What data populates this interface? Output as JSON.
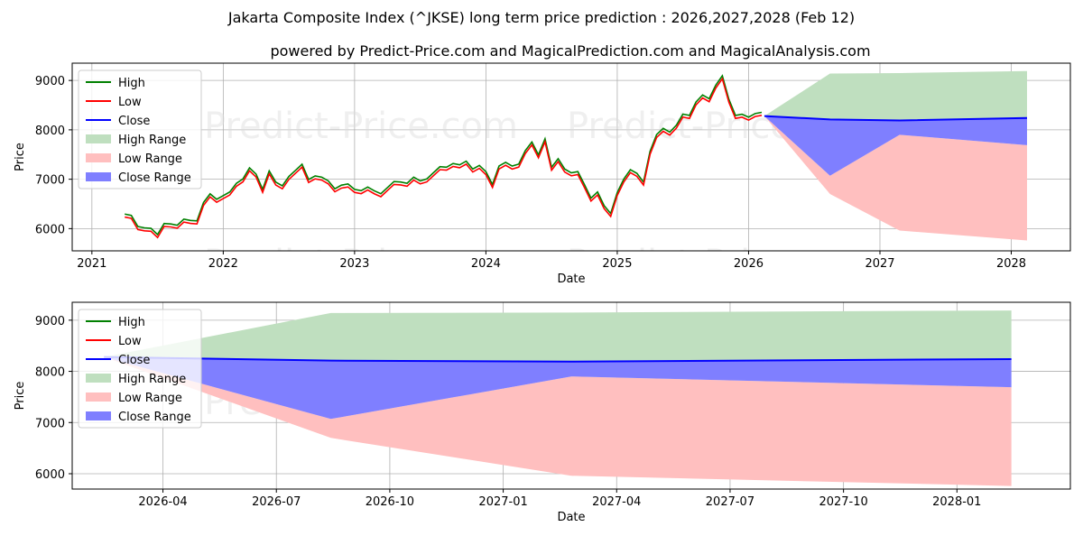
{
  "title_line1": "Jakarta Composite Index (^JKSE) long term price prediction : 2026,2027,2028 (Feb 12)",
  "title_line2": "powered by Predict-Price.com and MagicalPrediction.com and MagicalAnalysis.com",
  "watermark": "Predict-Price.com",
  "colors": {
    "high": "#008000",
    "low": "#ff0000",
    "close": "#0000ff",
    "high_range": "#bfdfbf",
    "low_range": "#ffbfbf",
    "close_range": "#7f7fff"
  },
  "legend": [
    "High",
    "Low",
    "Close",
    "High Range",
    "Low Range",
    "Close Range"
  ],
  "chart_data": [
    {
      "type": "line",
      "title": "Jakarta Composite Index (^JKSE) long term price prediction : 2026,2027,2028 (Feb 12)",
      "xlabel": "Date",
      "ylabel": "Price",
      "xlim": [
        2020.85,
        2028.45
      ],
      "ylim": [
        5550,
        9350
      ],
      "x_ticks": [
        2021,
        2022,
        2023,
        2024,
        2025,
        2026,
        2027,
        2028
      ],
      "x_tick_labels": [
        "2021",
        "2022",
        "2023",
        "2024",
        "2025",
        "2026",
        "2027",
        "2028"
      ],
      "y_ticks": [
        6000,
        7000,
        8000,
        9000
      ],
      "y_tick_labels": [
        "6000",
        "7000",
        "8000",
        "9000"
      ],
      "grid": true,
      "legend_position": "top-left",
      "history": {
        "x": [
          2021.25,
          2021.3,
          2021.35,
          2021.4,
          2021.45,
          2021.5,
          2021.55,
          2021.6,
          2021.65,
          2021.7,
          2021.75,
          2021.8,
          2021.85,
          2021.9,
          2021.95,
          2022.0,
          2022.05,
          2022.1,
          2022.15,
          2022.2,
          2022.25,
          2022.3,
          2022.35,
          2022.4,
          2022.45,
          2022.5,
          2022.55,
          2022.6,
          2022.65,
          2022.7,
          2022.75,
          2022.8,
          2022.85,
          2022.9,
          2022.95,
          2023.0,
          2023.05,
          2023.1,
          2023.15,
          2023.2,
          2023.25,
          2023.3,
          2023.35,
          2023.4,
          2023.45,
          2023.5,
          2023.55,
          2023.6,
          2023.65,
          2023.7,
          2023.75,
          2023.8,
          2023.85,
          2023.9,
          2023.95,
          2024.0,
          2024.05,
          2024.1,
          2024.15,
          2024.2,
          2024.25,
          2024.3,
          2024.35,
          2024.4,
          2024.45,
          2024.5,
          2024.55,
          2024.6,
          2024.65,
          2024.7,
          2024.75,
          2024.8,
          2024.85,
          2024.9,
          2024.95,
          2025.0,
          2025.05,
          2025.1,
          2025.15,
          2025.2,
          2025.25,
          2025.3,
          2025.35,
          2025.4,
          2025.45,
          2025.5,
          2025.55,
          2025.6,
          2025.65,
          2025.7,
          2025.75,
          2025.8,
          2025.85,
          2025.9,
          2025.95,
          2026.0,
          2026.05,
          2026.1
        ],
        "close": [
          6300,
          6250,
          6000,
          5950,
          6000,
          5850,
          6050,
          6100,
          6050,
          6150,
          6100,
          6150,
          6500,
          6650,
          6600,
          6650,
          6700,
          6850,
          7000,
          7200,
          7050,
          6800,
          7150,
          6900,
          6800,
          7050,
          7150,
          7250,
          7000,
          7050,
          7000,
          6900,
          6800,
          6850,
          6850,
          6800,
          6750,
          6800,
          6700,
          6700,
          6800,
          6900,
          6950,
          6900,
          7000,
          6900,
          7000,
          7100,
          7200,
          7250,
          7300,
          7250,
          7300,
          7200,
          7250,
          7100,
          6900,
          7250,
          7300,
          7200,
          7300,
          7550,
          7700,
          7500,
          7800,
          7200,
          7350,
          7200,
          7100,
          7100,
          6900,
          6600,
          6700,
          6400,
          6300,
          6700,
          6950,
          7200,
          7100,
          6900,
          7500,
          7900,
          8000,
          7900,
          8100,
          8300,
          8250,
          8500,
          8700,
          8600,
          8850,
          9100,
          8600,
          8250,
          8250,
          8250,
          8300,
          8300
        ]
      },
      "forecast": {
        "x": [
          2026.12,
          2026.62,
          2027.15,
          2028.12
        ],
        "close": [
          8280,
          8210,
          8190,
          8240
        ],
        "high_range": [
          8280,
          9140,
          9150,
          9190
        ],
        "low_range_lower": [
          8280,
          6700,
          5960,
          5760
        ],
        "low_range_upper": [
          8280,
          7070,
          7900,
          7690
        ],
        "close_range_lower": [
          8280,
          7070,
          7900,
          7690
        ],
        "close_range_upper": [
          8280,
          8210,
          8190,
          8240
        ]
      }
    },
    {
      "type": "area",
      "xlabel": "Date",
      "ylabel": "Price",
      "xlim": [
        2026.05,
        2028.25
      ],
      "ylim": [
        5700,
        9350
      ],
      "x_ticks": [
        2026.25,
        2026.5,
        2026.75,
        2027.0,
        2027.25,
        2027.5,
        2027.75,
        2028.0
      ],
      "x_tick_labels": [
        "2026-04",
        "2026-07",
        "2026-10",
        "2027-01",
        "2027-04",
        "2027-07",
        "2027-10",
        "2028-01"
      ],
      "y_ticks": [
        6000,
        7000,
        8000,
        9000
      ],
      "y_tick_labels": [
        "6000",
        "7000",
        "8000",
        "9000"
      ],
      "grid": true,
      "legend_position": "top-left",
      "forecast": {
        "x": [
          2026.12,
          2026.62,
          2027.15,
          2028.12
        ],
        "close": [
          8280,
          8210,
          8190,
          8240
        ],
        "high_range": [
          8280,
          9140,
          9150,
          9190
        ],
        "low_range_lower": [
          8280,
          6700,
          5960,
          5760
        ],
        "low_range_upper": [
          8280,
          7070,
          7900,
          7690
        ],
        "close_range_lower": [
          8280,
          7070,
          7900,
          7690
        ],
        "close_range_upper": [
          8280,
          8210,
          8190,
          8240
        ]
      }
    }
  ]
}
